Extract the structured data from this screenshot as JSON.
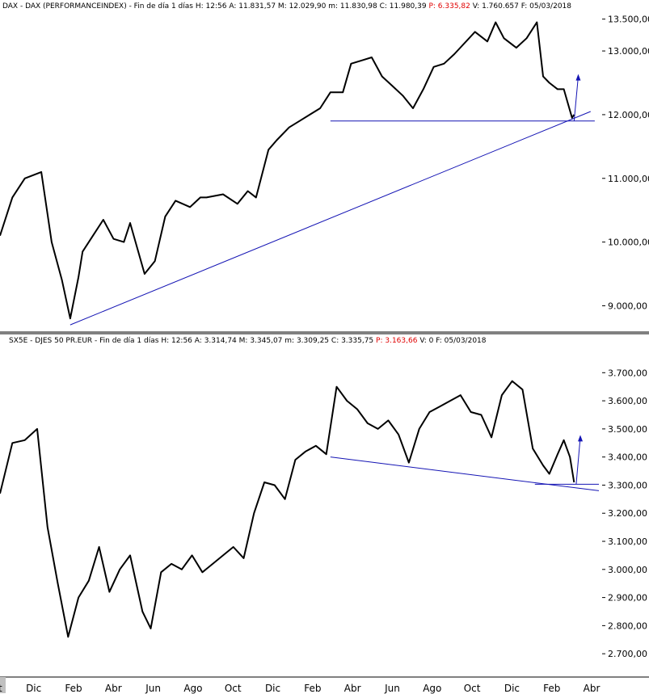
{
  "panels": {
    "top": {
      "symbol": "DAX - DAX (PERFORMANCEINDEX) - Fin de día 1 días",
      "h": "H: 12:56",
      "a": "A: 11.831,57",
      "m": "M: 12.029,90",
      "lo": "m: 11.830,98",
      "c": "C: 11.980,39",
      "p": "P: 6.335,82",
      "v": "V: 1.760.657",
      "f": "F: 05/03/2018"
    },
    "bottom": {
      "symbol": "SX5E - DJES 50 PR.EUR - Fin de día 1 días",
      "h": "H: 12:56",
      "a": "A: 3.314,74",
      "m": "M: 3.345,07",
      "lo": "m: 3.309,25",
      "c": "C: 3.335,75",
      "p": "P: 3.163,66",
      "v": "V: 0",
      "f": "F: 05/03/2018"
    }
  },
  "colors": {
    "price": "#000000",
    "drawing": "#1414b4",
    "header_red": "#e00000",
    "axis_line": "#000000"
  },
  "chart_data": [
    {
      "type": "line",
      "title": "DAX - DAX (PERFORMANCEINDEX)",
      "y_ticks": [
        "9.000,00",
        "10.000,00",
        "11.000,00",
        "12.000,00",
        "13.000,00",
        "13.500,00"
      ],
      "ylim": [
        8600,
        13800
      ],
      "x_ticks": [
        "Oct",
        "Dic",
        "Feb",
        "Abr",
        "Jun",
        "Ago",
        "Oct",
        "Dic",
        "Feb",
        "Abr",
        "Jun",
        "Ago",
        "Oct",
        "Dic",
        "Feb",
        "Abr"
      ],
      "xlim": [
        0,
        29
      ],
      "series": [
        {
          "x": [
            0,
            0.6,
            1.2,
            2.0,
            2.5,
            3.0,
            3.4,
            3.8,
            4.0,
            4.5,
            5.0,
            5.5,
            6.0,
            6.3,
            7.0,
            7.5,
            8.0,
            8.5,
            9.2,
            9.7,
            10.0,
            10.8,
            11.5,
            12.0,
            12.4,
            13.0,
            13.4,
            14.0,
            14.5,
            15.0,
            15.5,
            16.0,
            16.6,
            17.0,
            17.5,
            18.0,
            18.5,
            19.0,
            19.5,
            20.0,
            20.5,
            21.0,
            21.5,
            22.0,
            23.0,
            23.6,
            24.0,
            24.4,
            25.0,
            25.5,
            26.0,
            26.3,
            26.6,
            27.0,
            27.3,
            27.7,
            27.8
          ],
          "y": [
            10100,
            10700,
            11000,
            11100,
            10000,
            9400,
            8800,
            9450,
            9850,
            10100,
            10350,
            10050,
            10000,
            10300,
            9500,
            9700,
            10400,
            10650,
            10550,
            10700,
            10700,
            10750,
            10600,
            10800,
            10700,
            11450,
            11600,
            11800,
            11900,
            12000,
            12100,
            12350,
            12350,
            12800,
            12850,
            12900,
            12600,
            12450,
            12300,
            12100,
            12400,
            12750,
            12800,
            12950,
            13300,
            13150,
            13450,
            13200,
            13050,
            13200,
            13450,
            12600,
            12500,
            12400,
            12400,
            11950,
            12000
          ]
        }
      ],
      "trendlines": [
        {
          "x1": 3.4,
          "y1": 8700,
          "x2": 28.6,
          "y2": 12050
        },
        {
          "x1": 16.0,
          "y1": 11900,
          "x2": 28.8,
          "y2": 11900
        },
        {
          "x1": 27.8,
          "y1": 11900,
          "x2": 28.0,
          "y2": 12600
        }
      ]
    },
    {
      "type": "line",
      "title": "SX5E - DJES 50 PR.EUR",
      "y_ticks": [
        "2.700,00",
        "2.800,00",
        "2.900,00",
        "3.000,00",
        "3.100,00",
        "3.200,00",
        "3.300,00",
        "3.400,00",
        "3.500,00",
        "3.600,00",
        "3.700,00"
      ],
      "ylim": [
        2620,
        3790
      ],
      "x_ticks": [
        "Oct",
        "Dic",
        "Feb",
        "Abr",
        "Jun",
        "Ago",
        "Oct",
        "Dic",
        "Feb",
        "Abr",
        "Jun",
        "Ago",
        "Oct",
        "Dic",
        "Feb",
        "Abr"
      ],
      "xlim": [
        0,
        29
      ],
      "series": [
        {
          "x": [
            0,
            0.6,
            1.2,
            1.8,
            2.3,
            2.8,
            3.3,
            3.8,
            4.3,
            4.8,
            5.3,
            5.8,
            6.3,
            6.9,
            7.3,
            7.8,
            8.3,
            8.8,
            9.3,
            9.8,
            10.3,
            10.8,
            11.3,
            11.8,
            12.3,
            12.8,
            13.3,
            13.8,
            14.3,
            14.8,
            15.3,
            15.8,
            16.3,
            16.8,
            17.3,
            17.8,
            18.3,
            18.8,
            19.3,
            19.8,
            20.3,
            20.8,
            21.3,
            21.8,
            22.3,
            22.8,
            23.3,
            23.8,
            24.3,
            24.8,
            25.3,
            25.8,
            26.3,
            26.6,
            27.0,
            27.3,
            27.6,
            27.8
          ],
          "y": [
            3270,
            3450,
            3460,
            3500,
            3150,
            2950,
            2760,
            2900,
            2960,
            3080,
            2920,
            3000,
            3050,
            2850,
            2790,
            2990,
            3020,
            3000,
            3050,
            2990,
            3020,
            3050,
            3080,
            3040,
            3200,
            3310,
            3300,
            3250,
            3390,
            3420,
            3440,
            3410,
            3650,
            3600,
            3570,
            3520,
            3500,
            3530,
            3480,
            3380,
            3500,
            3560,
            3580,
            3600,
            3620,
            3560,
            3550,
            3470,
            3620,
            3670,
            3640,
            3430,
            3370,
            3340,
            3410,
            3460,
            3400,
            3310
          ]
        }
      ],
      "trendlines": [
        {
          "x1": 16.0,
          "y1": 3400,
          "x2": 29.0,
          "y2": 3280
        },
        {
          "x1": 25.9,
          "y1": 3303,
          "x2": 29.0,
          "y2": 3303
        },
        {
          "x1": 27.9,
          "y1": 3303,
          "x2": 28.1,
          "y2": 3470
        }
      ]
    }
  ]
}
